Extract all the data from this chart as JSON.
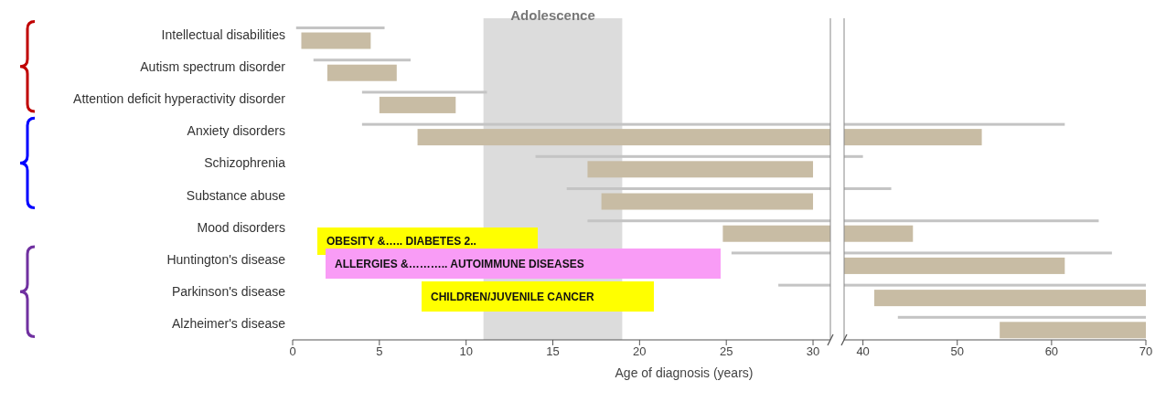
{
  "chart_data": [
    {
      "type": "bar",
      "orientation": "horizontal",
      "xlabel": "Age of diagnosis (years)",
      "categories": [
        "Intellectual disabilities",
        "Autism spectrum disorder",
        "Attention deficit hyperactivity disorder",
        "Anxiety disorders",
        "Schizophrenia",
        "Substance abuse",
        "Mood disorders",
        "Huntington's disease",
        "Parkinson's disease",
        "Alzheimer's disease"
      ],
      "series": [
        {
          "color": "#c4c4c4",
          "base": [
            0.2,
            1.2,
            4,
            4,
            14,
            15.8,
            17,
            25.3,
            28,
            null
          ],
          "values": [
            5.1,
            5.6,
            7.2,
            27,
            17,
            15.2,
            14,
            5.7,
            3,
            null
          ]
        },
        {
          "color": "#c8bca4",
          "base": [
            0.5,
            2,
            5,
            7.2,
            17,
            17.8,
            24.8,
            null,
            null,
            null
          ],
          "values": [
            4,
            4,
            4.4,
            23.8,
            13,
            12.2,
            6.2,
            null,
            null,
            null
          ]
        }
      ],
      "xlim": [
        0,
        31
      ],
      "xticks": [
        0,
        5,
        10,
        15,
        20,
        25,
        30
      ],
      "bands": [
        {
          "axis": "x",
          "from": 11,
          "to": 19,
          "label": "Adolescence",
          "color": "#dcdcdc"
        }
      ],
      "annotations": [
        "OBESITY &….. DIABETES 2..",
        "ALLERGIES &……….. AUTOIMMUNE DISEASES",
        "CHILDREN/JUVENILE CANCER"
      ],
      "legend": false,
      "grid": false
    },
    {
      "type": "bar",
      "orientation": "horizontal",
      "tick_labels": "x",
      "categories": [
        null,
        null,
        null,
        null,
        null,
        null,
        null,
        null,
        null,
        null
      ],
      "series": [
        {
          "color": "#c4c4c4",
          "base": [
            null,
            null,
            null,
            38,
            38,
            38,
            38,
            38,
            38,
            43.7
          ],
          "values": [
            null,
            null,
            null,
            23.4,
            2,
            5,
            27,
            28.4,
            32,
            26.3
          ]
        },
        {
          "color": "#c8bca4",
          "base": [
            null,
            null,
            null,
            38,
            null,
            null,
            38,
            38,
            41.2,
            54.5
          ],
          "values": [
            null,
            null,
            null,
            14.6,
            null,
            null,
            7.3,
            23.4,
            28.8,
            15.5
          ]
        }
      ],
      "xlim": [
        38,
        70
      ],
      "xticks": [
        40,
        50,
        60,
        70
      ],
      "legend": false,
      "grid": false
    }
  ]
}
